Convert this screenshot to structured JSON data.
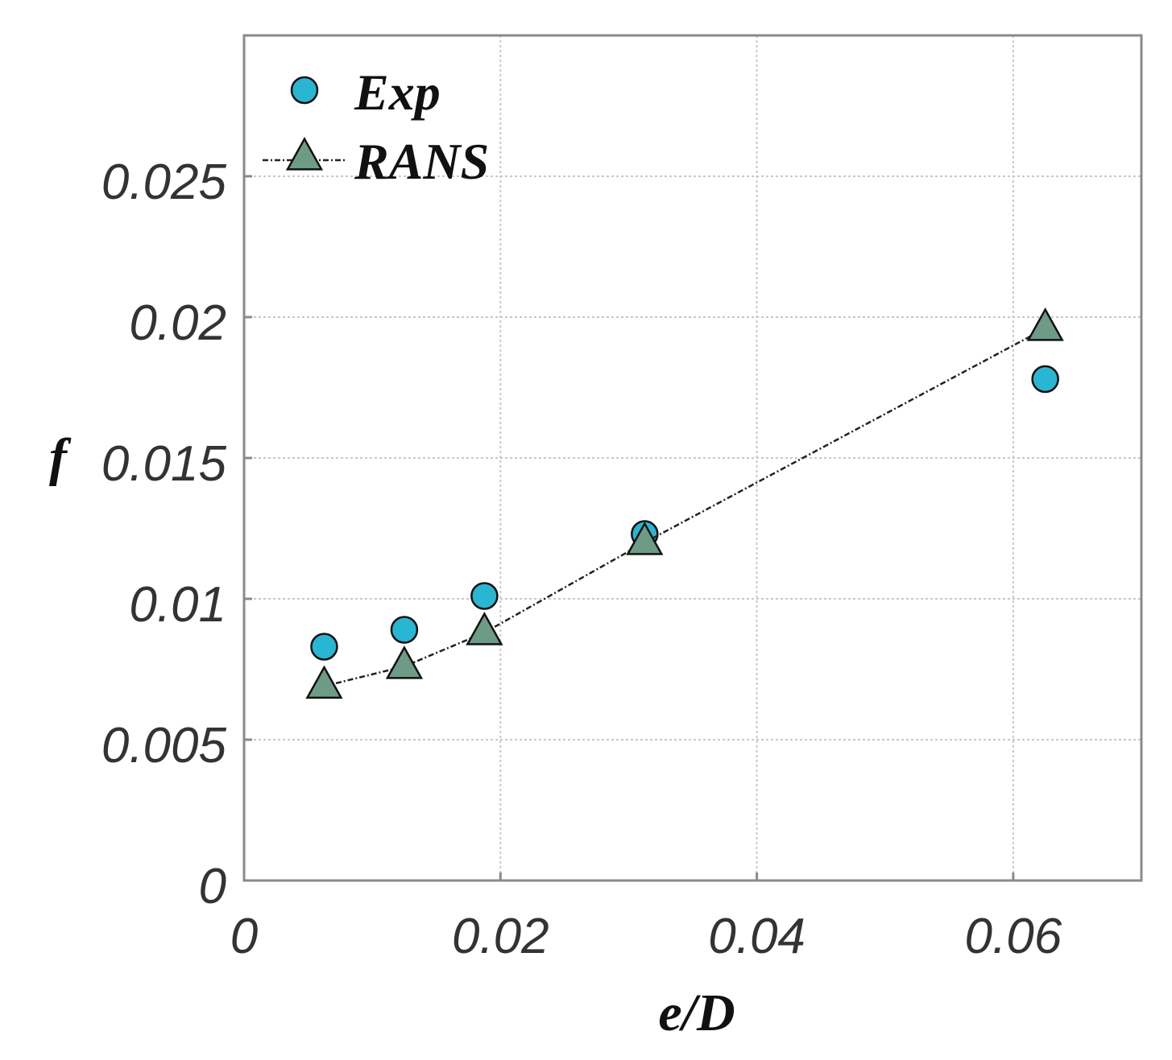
{
  "chart_data": {
    "type": "scatter",
    "title": "",
    "xlabel": "e/D",
    "ylabel": "f",
    "xlim": [
      0,
      0.07
    ],
    "ylim": [
      0,
      0.03
    ],
    "grid": true,
    "legend_position": "top-left",
    "x_ticks": [
      0,
      0.02,
      0.04,
      0.06
    ],
    "x_tick_labels": [
      "0",
      "0.02",
      "0.04",
      "0.06"
    ],
    "y_ticks": [
      0,
      0.005,
      0.01,
      0.015,
      0.02,
      0.025
    ],
    "y_tick_labels": [
      "0",
      "0.005",
      "0.01",
      "0.015",
      "0.02",
      "0.025"
    ],
    "series": [
      {
        "name": "Exp",
        "marker": "circle",
        "line": false,
        "color": "#29b6d2",
        "x": [
          0.00625,
          0.0125,
          0.01875,
          0.03125,
          0.0625
        ],
        "y": [
          0.0083,
          0.0089,
          0.0101,
          0.0123,
          0.0178
        ]
      },
      {
        "name": "RANS",
        "marker": "triangle",
        "line": true,
        "color": "#6e9b86",
        "x": [
          0.00625,
          0.0125,
          0.01875,
          0.03125,
          0.0625
        ],
        "y": [
          0.0069,
          0.0076,
          0.0088,
          0.012,
          0.0196
        ]
      }
    ]
  }
}
